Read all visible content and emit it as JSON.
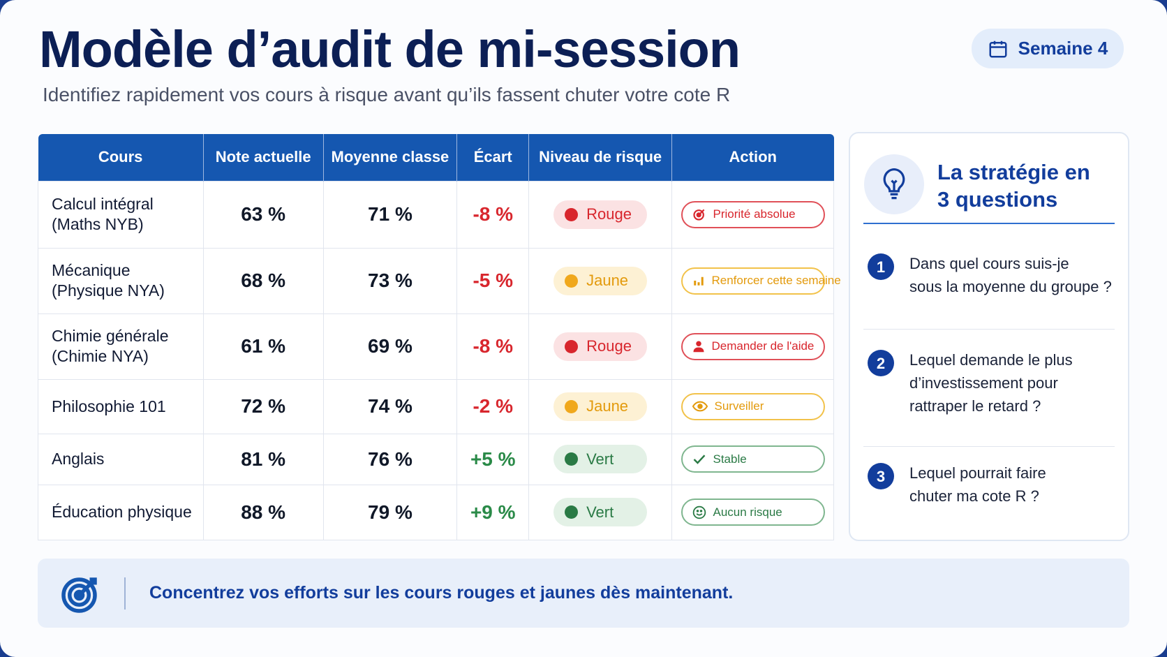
{
  "header": {
    "title": "Modèle d’audit de mi-session",
    "subtitle": "Identifiez rapidement vos cours à risque avant qu’ils fassent chuter votre cote R",
    "week_badge": "Semaine 4"
  },
  "table": {
    "columns": [
      "Cours",
      "Note actuelle",
      "Moyenne classe",
      "Écart",
      "Niveau de risque",
      "Action"
    ],
    "rows": [
      {
        "course": [
          "Calcul intégral",
          "(Maths NYB)"
        ],
        "grade": "63 %",
        "avg": "71 %",
        "gap": "-8 %",
        "risk": "Rouge",
        "level": "red",
        "action": "Priorité absolue",
        "icon": "target-icon"
      },
      {
        "course": [
          "Mécanique",
          "(Physique NYA)"
        ],
        "grade": "68 %",
        "avg": "73 %",
        "gap": "-5 %",
        "risk": "Jaune",
        "level": "yellow",
        "action": "Renforcer cette semaine",
        "icon": "bar-chart-icon"
      },
      {
        "course": [
          "Chimie générale",
          "(Chimie NYA)"
        ],
        "grade": "61 %",
        "avg": "69 %",
        "gap": "-8 %",
        "risk": "Rouge",
        "level": "red",
        "action": "Demander de l'aide",
        "icon": "person-icon"
      },
      {
        "course": [
          "Philosophie 101"
        ],
        "grade": "72 %",
        "avg": "74 %",
        "gap": "-2 %",
        "risk": "Jaune",
        "level": "yellow",
        "action": "Surveiller",
        "icon": "eye-icon"
      },
      {
        "course": [
          "Anglais"
        ],
        "grade": "81 %",
        "avg": "76 %",
        "gap": "+5 %",
        "risk": "Vert",
        "level": "green",
        "action": "Stable",
        "icon": "check-icon"
      },
      {
        "course": [
          "Éducation physique"
        ],
        "grade": "88 %",
        "avg": "79 %",
        "gap": "+9 %",
        "risk": "Vert",
        "level": "green",
        "action": "Aucun risque",
        "icon": "smile-icon"
      }
    ]
  },
  "strategy": {
    "title_line1": "La stratégie en",
    "title_line2": "3 questions",
    "questions": [
      {
        "num": "1",
        "lines": [
          "Dans quel cours suis-je",
          "sous la moyenne du groupe ?"
        ]
      },
      {
        "num": "2",
        "lines": [
          "Lequel demande le plus",
          "d’investissement pour",
          "rattraper le retard ?"
        ]
      },
      {
        "num": "3",
        "lines": [
          "Lequel pourrait faire",
          "chuter ma cote R ?"
        ]
      }
    ]
  },
  "banner": {
    "message": "Concentrez vos efforts sur les cours rouges et jaunes dès maintenant."
  },
  "colors": {
    "primary": "#1557b0",
    "red": "#d8262d",
    "yellow": "#f0a81c",
    "green": "#2a7a45"
  }
}
